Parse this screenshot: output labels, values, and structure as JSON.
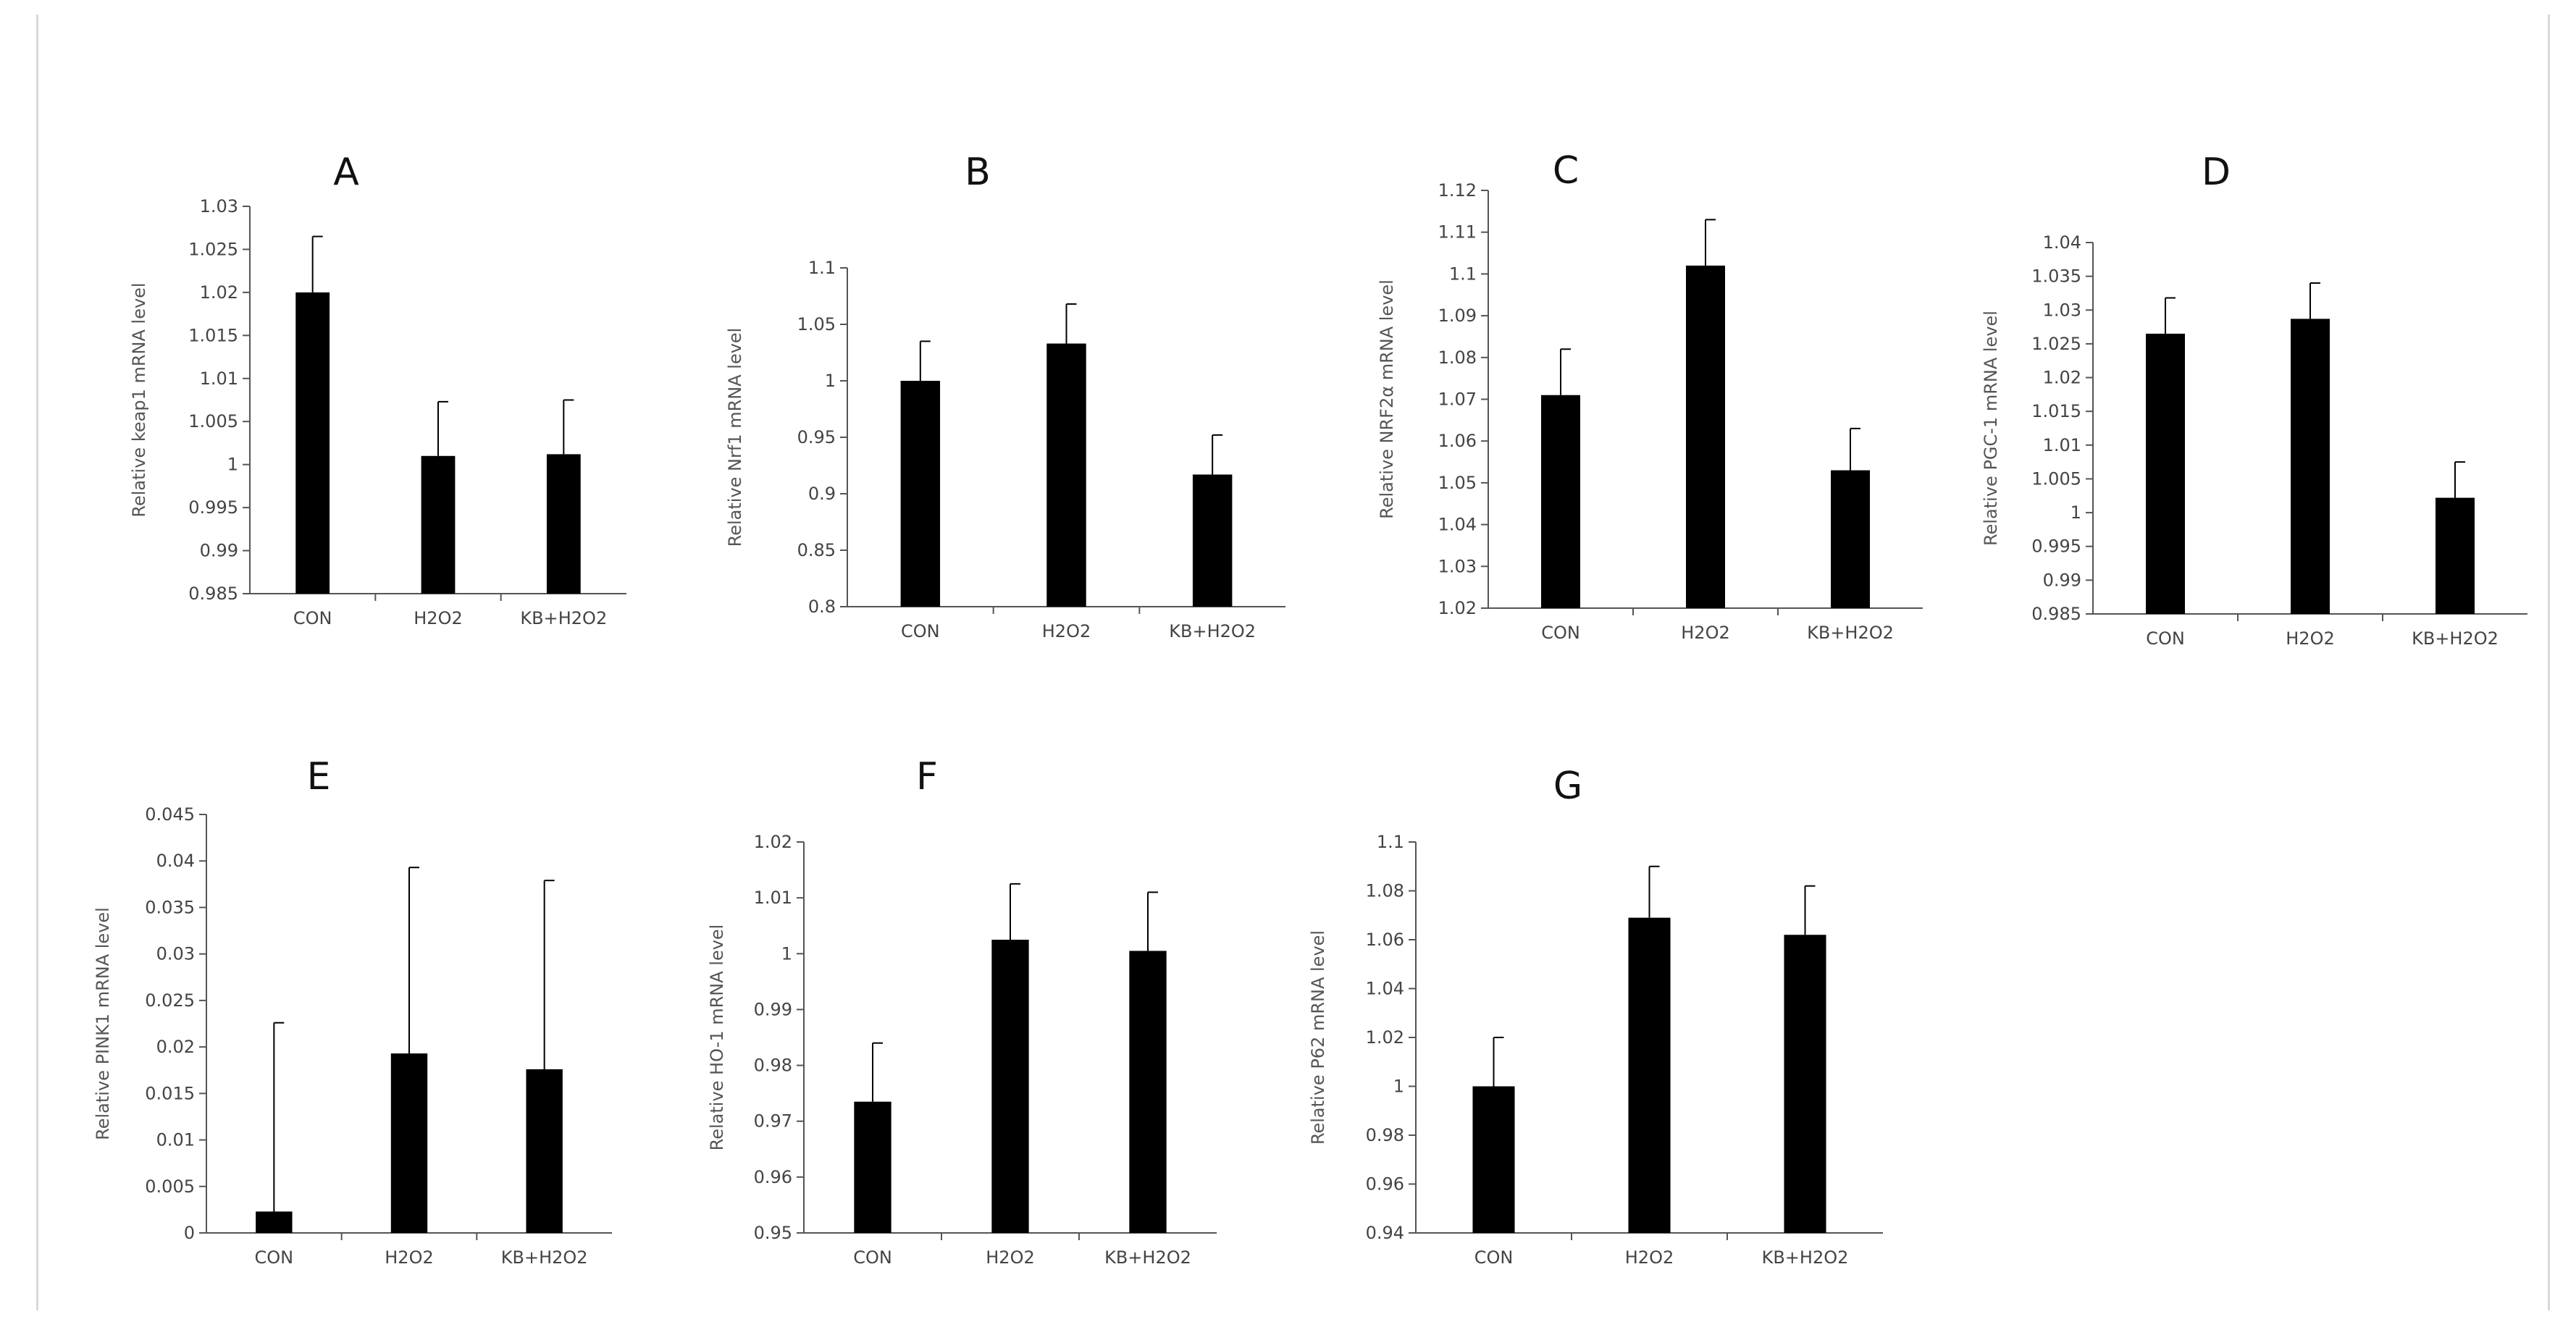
{
  "figure": {
    "accent_color": "#000000",
    "axis_color": "#555555"
  },
  "chart_data": [
    {
      "panel": "A",
      "type": "bar",
      "title": "A",
      "ylabel": "Relative keap1 mRNA level",
      "categories": [
        "CON",
        "H2O2",
        "KB+H2O2"
      ],
      "values": [
        1.02,
        1.001,
        1.0012
      ],
      "errors": [
        0.0065,
        0.0063,
        0.0063
      ],
      "ylim": [
        0.985,
        1.03
      ],
      "yticks": [
        "0.985",
        "0.99",
        "0.995",
        "1",
        "1.005",
        "1.01",
        "1.015",
        "1.02",
        "1.025",
        "1.03"
      ]
    },
    {
      "panel": "B",
      "type": "bar",
      "title": "B",
      "ylabel": "Relative Nrf1 mRNA level",
      "categories": [
        "CON",
        "H2O2",
        "KB+H2O2"
      ],
      "values": [
        1.0,
        1.033,
        0.917
      ],
      "errors": [
        0.035,
        0.035,
        0.035
      ],
      "ylim": [
        0.8,
        1.1
      ],
      "yticks": [
        "0.8",
        "0.85",
        "0.9",
        "0.95",
        "1",
        "1.05",
        "1.1"
      ]
    },
    {
      "panel": "C",
      "type": "bar",
      "title": "C",
      "ylabel": "Relative NRF2α  mRNA level",
      "categories": [
        "CON",
        "H2O2",
        "KB+H2O2"
      ],
      "values": [
        1.071,
        1.102,
        1.053
      ],
      "errors": [
        0.011,
        0.011,
        0.01
      ],
      "ylim": [
        1.02,
        1.12
      ],
      "yticks": [
        "1.02",
        "1.03",
        "1.04",
        "1.05",
        "1.06",
        "1.07",
        "1.08",
        "1.09",
        "1.1",
        "1.11",
        "1.12"
      ]
    },
    {
      "panel": "D",
      "type": "bar",
      "title": "D",
      "ylabel": "Relative PGC-1 mRNA level",
      "categories": [
        "CON",
        "H2O2",
        "KB+H2O2"
      ],
      "values": [
        1.0265,
        1.0287,
        1.0022
      ],
      "errors": [
        0.0053,
        0.0053,
        0.0053
      ],
      "ylim": [
        0.985,
        1.04
      ],
      "yticks": [
        "0.985",
        "0.99",
        "0.995",
        "1",
        "1.005",
        "1.01",
        "1.015",
        "1.02",
        "1.025",
        "1.03",
        "1.035",
        "1.04"
      ]
    },
    {
      "panel": "E",
      "type": "bar",
      "title": "E",
      "ylabel": "Relative PINK1 mRNA level",
      "categories": [
        "CON",
        "H2O2",
        "KB+H2O2"
      ],
      "values": [
        0.0023,
        0.0193,
        0.0176
      ],
      "errors": [
        0.0203,
        0.02,
        0.0203
      ],
      "ylim": [
        0,
        0.045
      ],
      "yticks": [
        "0",
        "0.005",
        "0.01",
        "0.015",
        "0.02",
        "0.025",
        "0.03",
        "0.035",
        "0.04",
        "0.045"
      ]
    },
    {
      "panel": "F",
      "type": "bar",
      "title": "F",
      "ylabel": "Relative HO-1 mRNA level",
      "categories": [
        "CON",
        "H2O2",
        "KB+H2O2"
      ],
      "values": [
        0.9735,
        1.0025,
        1.0005
      ],
      "errors": [
        0.0105,
        0.01,
        0.0105
      ],
      "ylim": [
        0.95,
        1.02
      ],
      "yticks": [
        "0.95",
        "0.96",
        "0.97",
        "0.98",
        "0.99",
        "1",
        "1.01",
        "1.02"
      ]
    },
    {
      "panel": "G",
      "type": "bar",
      "title": "G",
      "ylabel": "Relative P62 mRNA level",
      "categories": [
        "CON",
        "H2O2",
        "KB+H2O2"
      ],
      "values": [
        1.0,
        1.069,
        1.062
      ],
      "errors": [
        0.02,
        0.021,
        0.02
      ],
      "ylim": [
        0.94,
        1.1
      ],
      "yticks": [
        "0.94",
        "0.96",
        "0.98",
        "1",
        "1.02",
        "1.04",
        "1.06",
        "1.08",
        "1.1"
      ]
    }
  ]
}
